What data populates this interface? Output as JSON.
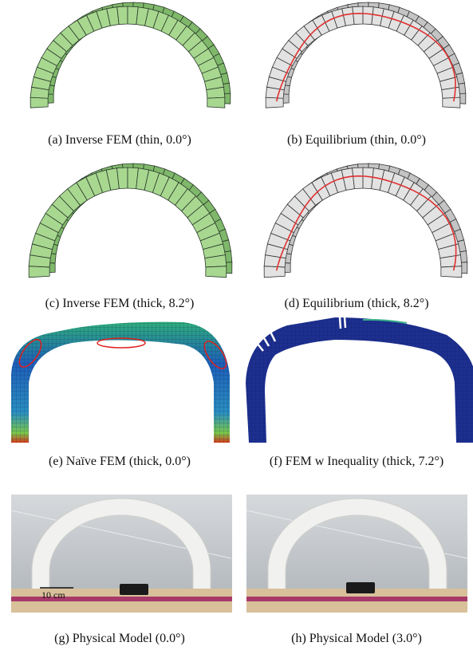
{
  "panels": [
    {
      "caption": "(a) Inverse FEM (thin, 0.0°)"
    },
    {
      "caption": "(b) Equilibrium (thin, 0.0°)"
    },
    {
      "caption": "(c) Inverse FEM (thick, 8.2°)"
    },
    {
      "caption": "(d) Equilibrium (thick, 8.2°)"
    },
    {
      "caption": "(e) Naïve FEM (thick, 0.0°)"
    },
    {
      "caption": "(f) FEM w Inequality (thick, 7.2°)"
    },
    {
      "caption": "(g) Physical Model (0.0°)"
    },
    {
      "caption": "(h) Physical Model (3.0°)"
    }
  ],
  "scale_label": "10 cm"
}
